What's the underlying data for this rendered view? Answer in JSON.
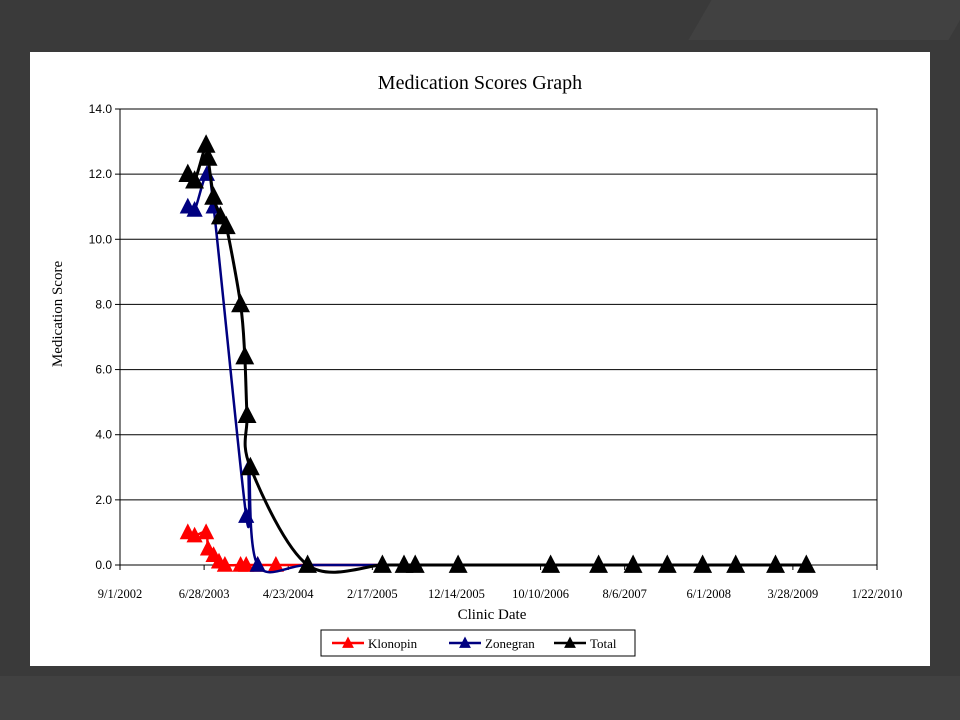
{
  "chart_data": {
    "type": "line",
    "title": "Medication Scores Graph",
    "xlabel": "Clinic Date",
    "ylabel": "Medication Score",
    "ylim": [
      0,
      14
    ],
    "yticks": [
      "0.0",
      "2.0",
      "4.0",
      "6.0",
      "8.0",
      "10.0",
      "12.0",
      "14.0"
    ],
    "xlim": [
      "2002-09-01",
      "2010-01-22"
    ],
    "xticks": [
      "9/1/2002",
      "6/28/2003",
      "4/23/2004",
      "2/17/2005",
      "12/14/2005",
      "10/10/2006",
      "8/6/2007",
      "6/1/2008",
      "3/28/2009",
      "1/22/2010"
    ],
    "xtick_dates": [
      "2002-09-01",
      "2003-06-28",
      "2004-04-23",
      "2005-02-17",
      "2005-12-14",
      "2006-10-10",
      "2007-08-06",
      "2008-06-01",
      "2009-03-28",
      "2010-01-22"
    ],
    "grid": "horizontal",
    "legend": "bottom",
    "series": [
      {
        "name": "Klonopin",
        "color": "#ff0000",
        "points": [
          [
            "2003-05-01",
            1.0
          ],
          [
            "2003-05-25",
            0.9
          ],
          [
            "2003-07-05",
            1.0
          ],
          [
            "2003-07-12",
            0.5
          ],
          [
            "2003-08-01",
            0.3
          ],
          [
            "2003-08-20",
            0.1
          ],
          [
            "2003-09-10",
            0.0
          ],
          [
            "2003-11-05",
            0.0
          ],
          [
            "2003-11-25",
            0.0
          ],
          [
            "2004-01-05",
            0.0
          ],
          [
            "2004-03-10",
            0.0
          ],
          [
            "2004-07-01",
            0.0
          ],
          [
            "2005-03-25",
            0.0
          ],
          [
            "2005-06-10",
            0.0
          ],
          [
            "2005-07-20",
            0.0
          ],
          [
            "2005-12-20",
            0.0
          ],
          [
            "2006-11-15",
            0.0
          ],
          [
            "2007-05-05",
            0.0
          ],
          [
            "2007-09-05",
            0.0
          ],
          [
            "2008-01-05",
            0.0
          ],
          [
            "2008-05-10",
            0.0
          ],
          [
            "2008-09-05",
            0.0
          ],
          [
            "2009-01-25",
            0.0
          ],
          [
            "2009-05-15",
            0.0
          ]
        ]
      },
      {
        "name": "Zonegran",
        "color": "#000080",
        "points": [
          [
            "2003-05-01",
            11.0
          ],
          [
            "2003-05-25",
            10.9
          ],
          [
            "2003-07-08",
            12.0
          ],
          [
            "2003-08-01",
            11.0
          ],
          [
            "2003-11-25",
            1.5
          ],
          [
            "2003-12-05",
            3.0
          ],
          [
            "2004-01-05",
            0.0
          ],
          [
            "2004-07-01",
            0.0
          ],
          [
            "2005-03-25",
            0.0
          ],
          [
            "2005-06-10",
            0.0
          ],
          [
            "2005-07-20",
            0.0
          ],
          [
            "2005-12-20",
            0.0
          ],
          [
            "2006-11-15",
            0.0
          ],
          [
            "2007-05-05",
            0.0
          ],
          [
            "2007-09-05",
            0.0
          ],
          [
            "2008-01-05",
            0.0
          ],
          [
            "2008-05-10",
            0.0
          ],
          [
            "2008-09-05",
            0.0
          ],
          [
            "2009-01-25",
            0.0
          ],
          [
            "2009-05-15",
            0.0
          ]
        ]
      },
      {
        "name": "Total",
        "color": "#000000",
        "points": [
          [
            "2003-05-01",
            12.0
          ],
          [
            "2003-05-25",
            11.8
          ],
          [
            "2003-07-05",
            12.9
          ],
          [
            "2003-07-12",
            12.5
          ],
          [
            "2003-08-01",
            11.3
          ],
          [
            "2003-08-25",
            10.7
          ],
          [
            "2003-09-15",
            10.4
          ],
          [
            "2003-11-05",
            8.0
          ],
          [
            "2003-11-20",
            6.4
          ],
          [
            "2003-11-28",
            4.6
          ],
          [
            "2003-12-10",
            3.0
          ],
          [
            "2004-07-01",
            0.0
          ],
          [
            "2005-03-25",
            0.0
          ],
          [
            "2005-06-10",
            0.0
          ],
          [
            "2005-07-20",
            0.0
          ],
          [
            "2005-12-20",
            0.0
          ],
          [
            "2006-11-15",
            0.0
          ],
          [
            "2007-05-05",
            0.0
          ],
          [
            "2007-09-05",
            0.0
          ],
          [
            "2008-01-05",
            0.0
          ],
          [
            "2008-05-10",
            0.0
          ],
          [
            "2008-09-05",
            0.0
          ],
          [
            "2009-01-25",
            0.0
          ],
          [
            "2009-05-15",
            0.0
          ]
        ]
      }
    ]
  }
}
